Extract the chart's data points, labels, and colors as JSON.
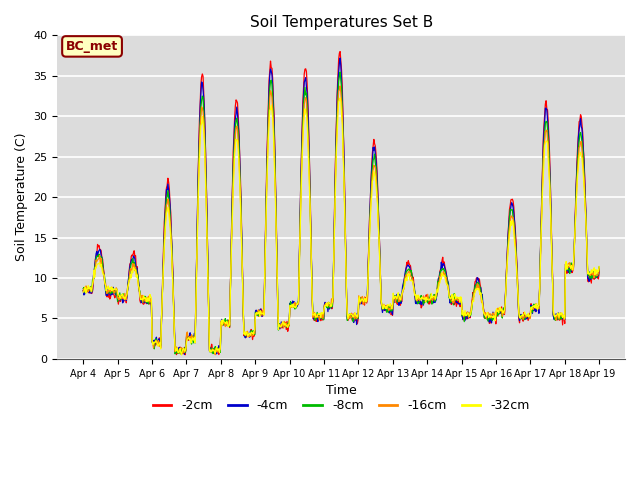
{
  "title": "Soil Temperatures Set B",
  "xlabel": "Time",
  "ylabel": "Soil Temperature (C)",
  "ylim": [
    0,
    40
  ],
  "annotation": "BC_met",
  "legend_labels": [
    "-2cm",
    "-4cm",
    "-8cm",
    "-16cm",
    "-32cm"
  ],
  "legend_colors": [
    "#ff0000",
    "#0000cc",
    "#00bb00",
    "#ff8800",
    "#ffff00"
  ],
  "line_colors": [
    "#ff0000",
    "#0000cc",
    "#00bb00",
    "#ff8800",
    "#ffff00"
  ],
  "bg_color": "#dcdcdc",
  "x_ticks": [
    "Apr 4",
    "Apr 5",
    "Apr 6",
    "Apr 7",
    "Apr 8",
    "Apr 9",
    "Apr 10",
    "Apr 11",
    "Apr 12",
    "Apr 13",
    "Apr 14",
    "Apr 15",
    "Apr 16",
    "Apr 17",
    "Apr 18",
    "Apr 19"
  ],
  "n_points_per_day": 48,
  "n_days": 15,
  "depth_factors": [
    0,
    0.05,
    0.12,
    0.18,
    0.25
  ],
  "day_peaks": [
    14,
    13,
    22,
    35,
    32,
    37,
    36,
    38,
    27,
    12,
    12,
    10,
    20,
    32,
    30
  ],
  "day_mins": [
    8,
    7,
    1,
    1,
    3,
    4,
    5,
    5,
    6,
    7,
    7,
    5,
    5,
    5,
    10
  ]
}
